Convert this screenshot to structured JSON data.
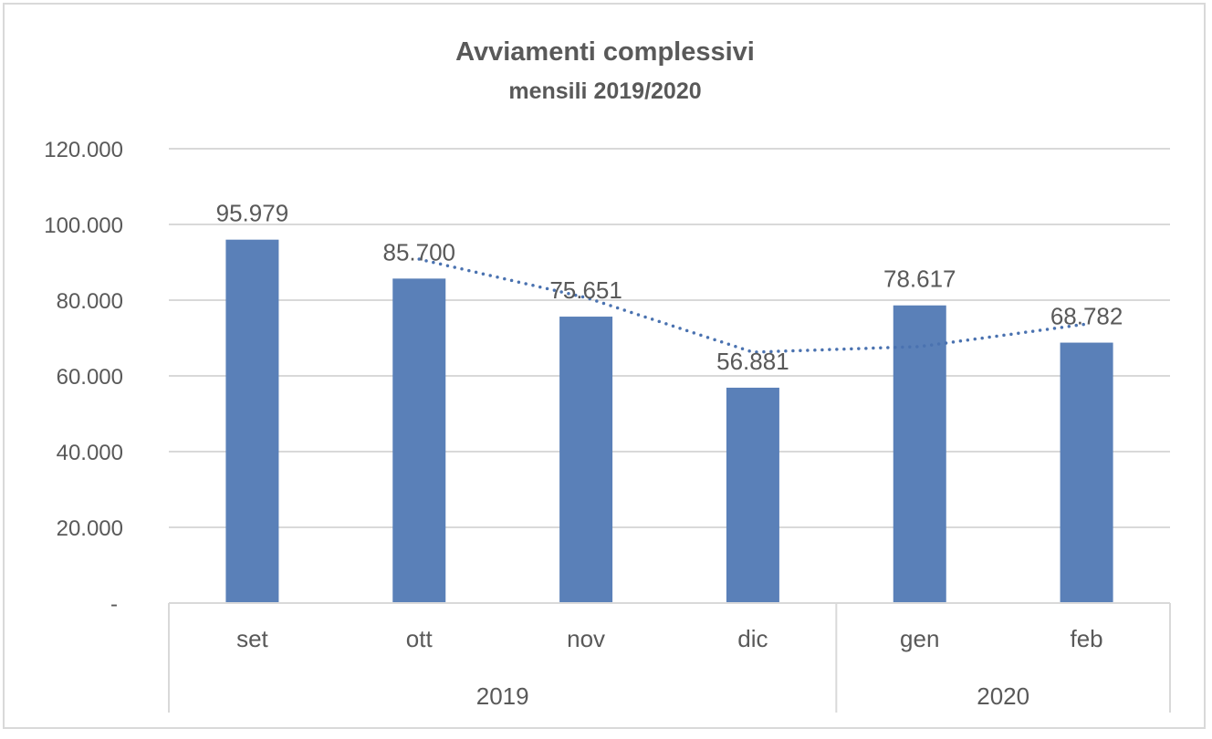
{
  "chart_data": {
    "type": "bar",
    "title": "Avviamenti complessivi",
    "subtitle": "mensili 2019/2020",
    "categories": [
      "set",
      "ott",
      "nov",
      "dic",
      "gen",
      "feb"
    ],
    "groups": [
      {
        "label": "2019",
        "count": 4
      },
      {
        "label": "2020",
        "count": 2
      }
    ],
    "values": [
      95979,
      85700,
      75651,
      56881,
      78617,
      68782
    ],
    "data_labels": [
      "95.979",
      "85.700",
      "75.651",
      "56.881",
      "78.617",
      "68.782"
    ],
    "ylim": [
      0,
      120000
    ],
    "yticks": [
      0,
      20000,
      40000,
      60000,
      80000,
      100000,
      120000
    ],
    "ytick_labels": [
      "-",
      "20.000",
      "40.000",
      "60.000",
      "80.000",
      "100.000",
      "120.000"
    ],
    "grid": true,
    "trendline": {
      "type": "moving-average",
      "period": 2,
      "style": "dotted"
    },
    "colors": {
      "bar": "#5a80b8",
      "trend": "#4a72b0",
      "grid": "#d9d9d9",
      "text": "#595959"
    }
  }
}
